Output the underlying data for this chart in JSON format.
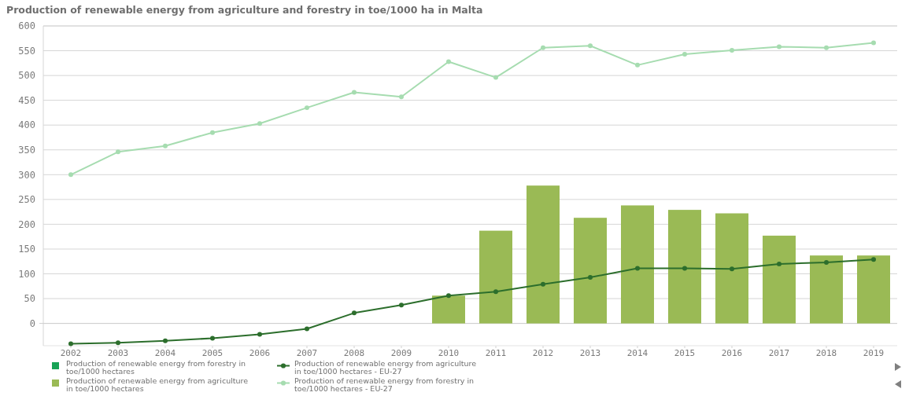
{
  "chart_data": {
    "type": "bar",
    "title": "Production of renewable energy from agriculture and forestry in toe/1000 ha in Malta",
    "categories": [
      "2002",
      "2003",
      "2004",
      "2005",
      "2006",
      "2007",
      "2008",
      "2009",
      "2010",
      "2011",
      "2012",
      "2013",
      "2014",
      "2015",
      "2016",
      "2017",
      "2018",
      "2019"
    ],
    "series": [
      {
        "name": "Production of renewable energy from forestry in toe/1000 hectares",
        "color": "#17a355",
        "values": [
          null,
          null,
          null,
          null,
          null,
          null,
          null,
          null,
          null,
          null,
          null,
          null,
          null,
          null,
          null,
          null,
          null,
          null
        ]
      },
      {
        "name": "Production of renewable energy from agriculture in toe/1000 hectares",
        "color": "#9aba55",
        "values": [
          null,
          null,
          null,
          null,
          null,
          null,
          null,
          null,
          56,
          187,
          278,
          213,
          238,
          229,
          222,
          177,
          137,
          137
        ]
      },
      {
        "name": "Production of renewable energy from agriculture in toe/1000 hectares - EU-27",
        "type": "line",
        "color": "#2c6e2c",
        "values": [
          -41,
          -39,
          -35,
          -30,
          -22,
          -11,
          21,
          37,
          56,
          64,
          79,
          93,
          111,
          111,
          110,
          120,
          123,
          129
        ]
      },
      {
        "name": "Production of renewable energy from forestry in toe/1000 hectares - EU-27",
        "type": "line",
        "color": "#a6dcb0",
        "values": [
          300,
          346,
          358,
          385,
          403,
          435,
          466,
          457,
          528,
          496,
          556,
          560,
          521,
          543,
          551,
          558,
          556,
          566
        ]
      }
    ],
    "ylim": [
      -45,
      600
    ],
    "yticks": [
      0,
      50,
      100,
      150,
      200,
      250,
      300,
      350,
      400,
      450,
      500,
      550,
      600
    ],
    "grid": "y",
    "legend": "bottom",
    "marker": "circle"
  }
}
